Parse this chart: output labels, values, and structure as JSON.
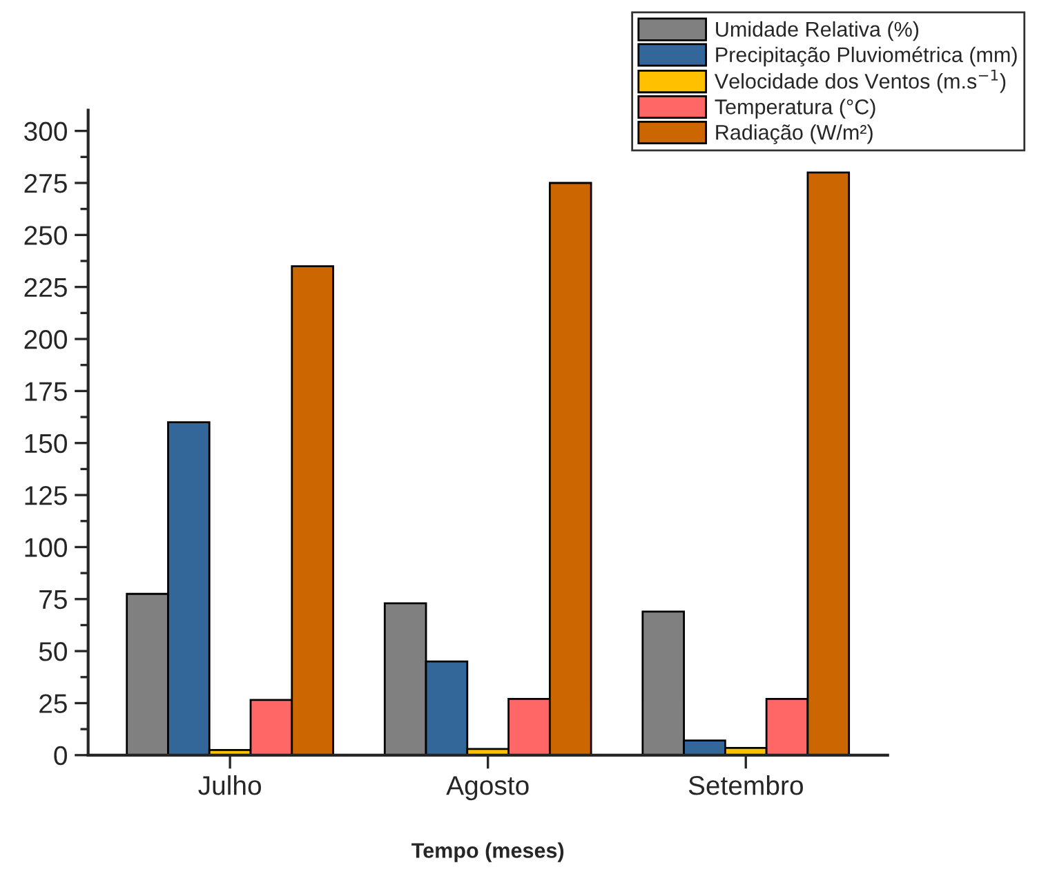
{
  "chart_data": {
    "type": "bar",
    "xlabel": "Tempo (meses)",
    "categories": [
      "Julho",
      "Agosto",
      "Setembro"
    ],
    "series": [
      {
        "name": "Umidade Relativa (%)",
        "color": "#808080",
        "values": [
          77.5,
          73,
          69
        ]
      },
      {
        "name": "Precipitação Pluviométrica (mm)",
        "color": "#336699",
        "values": [
          160,
          45,
          7
        ]
      },
      {
        "name": "Velocidade dos Ventos (m.s$^{−1}$)",
        "color": "#ffc000",
        "values": [
          2.5,
          3,
          3.5
        ]
      },
      {
        "name": "Temperatura (°C)",
        "color": "#ff6666",
        "values": [
          26.5,
          27,
          27
        ]
      },
      {
        "name": "Radiação (W/m²)",
        "color": "#cc6600",
        "values": [
          235,
          275,
          280
        ]
      }
    ],
    "ylim": [
      0,
      310
    ],
    "yticks": [
      0,
      25,
      50,
      75,
      100,
      125,
      150,
      175,
      200,
      225,
      250,
      275,
      300
    ],
    "grid": false,
    "legend": "top right"
  }
}
